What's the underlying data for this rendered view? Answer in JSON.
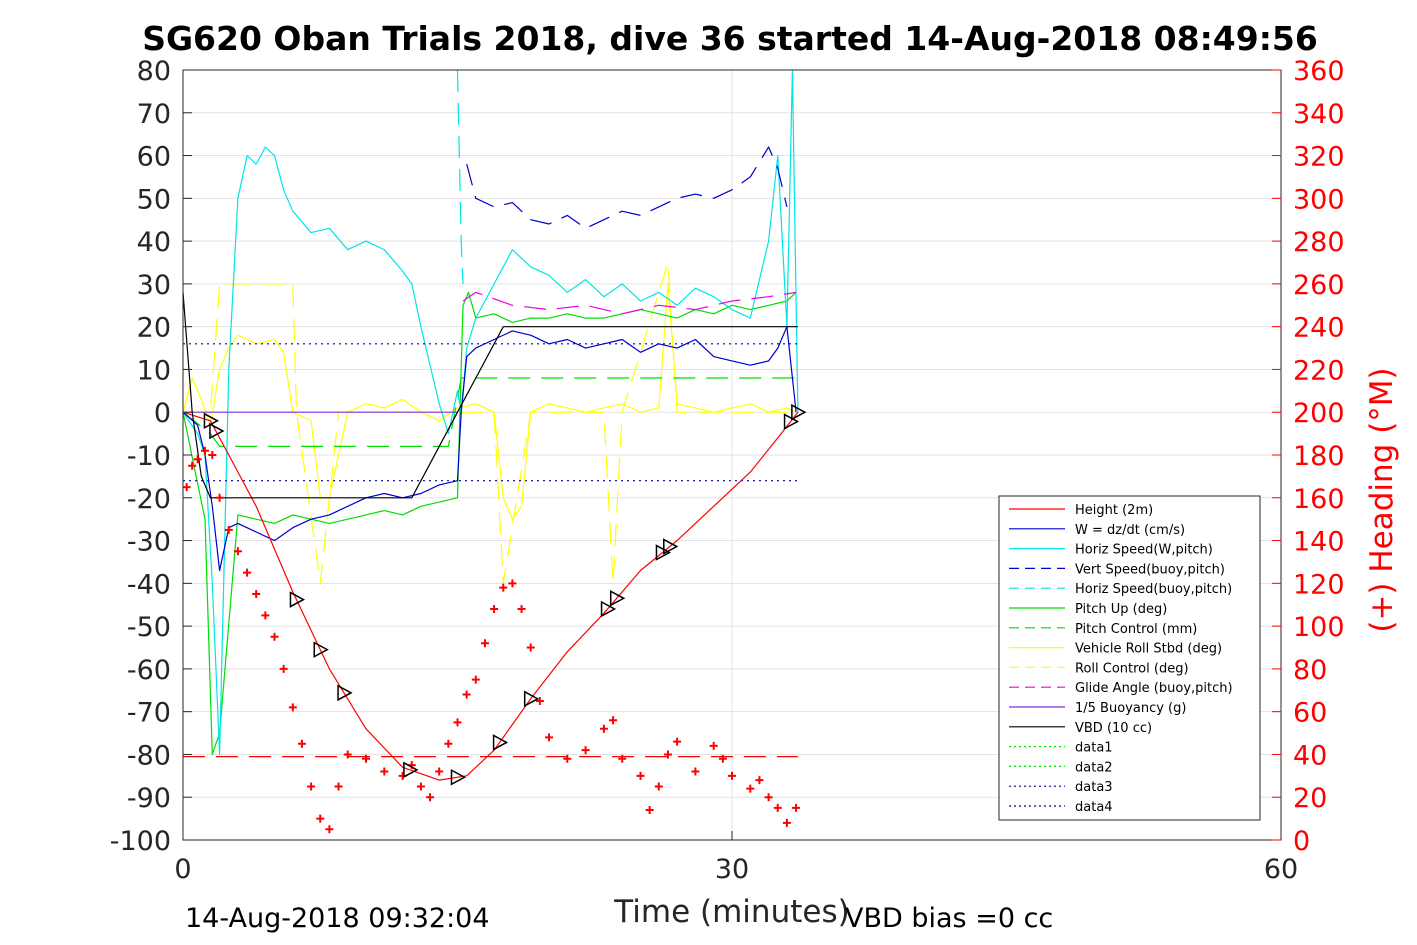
{
  "chart_data": {
    "type": "line",
    "title": "SG620 Oban Trials 2018, dive 36 started 14-Aug-2018 08:49:56",
    "xlabel": "Time (minutes)",
    "ylabel_right": "(+) Heading (°M)",
    "xlim": [
      0,
      60
    ],
    "ylim": [
      -100,
      80
    ],
    "y2lim": [
      0,
      360
    ],
    "xticks": [
      0,
      30,
      60
    ],
    "yticks": [
      80,
      70,
      60,
      50,
      40,
      30,
      20,
      10,
      0,
      -10,
      -20,
      -30,
      -40,
      -50,
      -60,
      -70,
      -80,
      -90,
      -100
    ],
    "y2ticks": [
      360,
      340,
      320,
      300,
      280,
      260,
      240,
      220,
      200,
      180,
      160,
      140,
      120,
      100,
      80,
      60,
      40,
      20,
      0
    ],
    "grid": true,
    "legend_position": "right-center",
    "footer_left": "14-Aug-2018 09:32:04",
    "footer_right": "VBD bias =0 cc",
    "colors": {
      "height": "#ff0000",
      "w": "#0000cd",
      "horiz_speed": "#00e5e5",
      "vert_speed_buoy": "#0000cd",
      "horiz_speed_buoy": "#00e5e5",
      "pitch_up": "#00dd00",
      "pitch_control": "#00dd00",
      "roll": "#ffff00",
      "roll_control": "#ffff00",
      "glide_angle": "#ee00ee",
      "buoyancy": "#8a2be2",
      "vbd": "#000000",
      "data1": "#00dd00",
      "data2": "#00dd00",
      "data3": "#0000aa",
      "data4": "#0000aa",
      "heading": "#ff0000"
    },
    "legend": [
      {
        "label": "Height (2m)",
        "color": "#ff0000",
        "dash": "solid"
      },
      {
        "label": "W = dz/dt (cm/s)",
        "color": "#0000cd",
        "dash": "solid"
      },
      {
        "label": "Horiz Speed(W,pitch)",
        "color": "#00e5e5",
        "dash": "solid"
      },
      {
        "label": "Vert Speed(buoy,pitch)",
        "color": "#0000cd",
        "dash": "dashed"
      },
      {
        "label": "Horiz Speed(buoy,pitch)",
        "color": "#00e5e5",
        "dash": "dashed"
      },
      {
        "label": "Pitch Up (deg)",
        "color": "#00dd00",
        "dash": "solid"
      },
      {
        "label": "Pitch Control (mm)",
        "color": "#00dd00",
        "dash": "dashed"
      },
      {
        "label": "Vehicle Roll Stbd (deg)",
        "color": "#ffff00",
        "dash": "solid"
      },
      {
        "label": "Roll Control (deg)",
        "color": "#ffff00",
        "dash": "dashed"
      },
      {
        "label": "Glide Angle (buoy,pitch)",
        "color": "#ee00ee",
        "dash": "dashed"
      },
      {
        "label": "1/5 Buoyancy (g)",
        "color": "#8a2be2",
        "dash": "solid"
      },
      {
        "label": "VBD (10 cc)",
        "color": "#000000",
        "dash": "solid"
      },
      {
        "label": "data1",
        "color": "#00dd00",
        "dash": "dotted"
      },
      {
        "label": "data2",
        "color": "#00dd00",
        "dash": "dotted"
      },
      {
        "label": "data3",
        "color": "#0000aa",
        "dash": "dotted"
      },
      {
        "label": "data4",
        "color": "#0000aa",
        "dash": "dotted"
      }
    ],
    "series": [
      {
        "name": "Height (2m)",
        "style": "line",
        "x": [
          0,
          1.5,
          2.5,
          4,
          6,
          8,
          10,
          12,
          14,
          15.5,
          17,
          19,
          21,
          23,
          25,
          27,
          29,
          31,
          32.5,
          33.6
        ],
        "y": [
          0,
          -2,
          -10,
          -22,
          -42,
          -60,
          -74,
          -83,
          -86,
          -85,
          -79,
          -67,
          -56,
          -47,
          -37,
          -30,
          -22,
          -14,
          -6,
          0
        ]
      },
      {
        "name": "W = dz/dt (cm/s)",
        "style": "line",
        "x": [
          0,
          0.8,
          1.2,
          1.6,
          2,
          2.5,
          3,
          4,
          5,
          6,
          7,
          8,
          9,
          10,
          11,
          12,
          13,
          14,
          15,
          15.2,
          15.5,
          16,
          17,
          18,
          19,
          20,
          21,
          22,
          23,
          24,
          25,
          26,
          27,
          28,
          29,
          30,
          31,
          32,
          32.5,
          33,
          33.5
        ],
        "y": [
          0,
          -3,
          -10,
          -22,
          -37,
          -27,
          -26,
          -28,
          -30,
          -27,
          -25,
          -24,
          -22,
          -20,
          -19,
          -20,
          -19,
          -17,
          -16,
          0,
          13,
          15,
          17,
          19,
          18,
          16,
          17,
          15,
          16,
          17,
          14,
          16,
          15,
          17,
          13,
          12,
          11,
          12,
          15,
          20,
          0
        ]
      },
      {
        "name": "Horiz Speed(W,pitch)",
        "style": "line",
        "x": [
          0,
          0.8,
          1.2,
          1.6,
          2,
          2.5,
          3,
          3.5,
          4,
          4.5,
          5,
          5.5,
          6,
          7,
          8,
          9,
          10,
          11,
          12,
          12.5,
          13,
          14,
          14.5,
          15,
          15.2,
          15.5,
          16,
          17,
          18,
          19,
          20,
          21,
          22,
          23,
          24,
          25,
          26,
          27,
          28,
          29,
          30,
          31,
          32,
          32.5,
          33,
          33.3,
          33.6
        ],
        "y": [
          0,
          -5,
          -10,
          -40,
          -80,
          10,
          50,
          60,
          58,
          62,
          60,
          52,
          47,
          42,
          43,
          38,
          40,
          38,
          33,
          30,
          20,
          2,
          -5,
          5,
          0,
          15,
          22,
          30,
          38,
          34,
          32,
          28,
          31,
          27,
          30,
          26,
          28,
          25,
          29,
          27,
          24,
          22,
          40,
          60,
          20,
          80,
          0
        ]
      },
      {
        "name": "Vert Speed(buoy,pitch)",
        "style": "dashed",
        "x": [
          15.5,
          16,
          17,
          18,
          19,
          20,
          21,
          22,
          23,
          24,
          25,
          26,
          27,
          28,
          29,
          30,
          31,
          32,
          32.5,
          33
        ],
        "y": [
          58,
          50,
          48,
          49,
          45,
          44,
          46,
          43,
          45,
          47,
          46,
          48,
          50,
          51,
          50,
          52,
          55,
          62,
          57,
          48
        ]
      },
      {
        "name": "Horiz Speed(buoy,pitch)",
        "style": "dashed",
        "x": [
          15,
          15.2,
          15.3
        ],
        "y": [
          80,
          40,
          30
        ]
      },
      {
        "name": "Pitch Up (deg)",
        "style": "line",
        "x": [
          0,
          1.2,
          1.6,
          2,
          3,
          4,
          5,
          6,
          7,
          8,
          9,
          10,
          11,
          12,
          13,
          14,
          15,
          15.3,
          15.6,
          16,
          17,
          18,
          19,
          20,
          21,
          22,
          23,
          24,
          25,
          26,
          27,
          28,
          29,
          30,
          31,
          32,
          33,
          33.5
        ],
        "y": [
          0,
          -25,
          -80,
          -75,
          -24,
          -25,
          -26,
          -24,
          -25,
          -26,
          -25,
          -24,
          -23,
          -24,
          -22,
          -21,
          -20,
          25,
          28,
          22,
          23,
          21,
          22,
          22,
          23,
          22,
          22,
          23,
          24,
          23,
          22,
          24,
          23,
          25,
          24,
          25,
          26,
          28
        ]
      },
      {
        "name": "Pitch Control (mm)",
        "style": "dashed",
        "x": [
          0,
          1.5,
          2,
          14.5,
          15.2,
          33.6
        ],
        "y": [
          0,
          -5,
          -8,
          -8,
          8,
          8
        ]
      },
      {
        "name": "Vehicle Roll Stbd (deg)",
        "style": "line",
        "x": [
          0,
          0.5,
          1,
          1.5,
          2,
          2.5,
          3,
          4,
          5,
          5.5,
          6,
          6.5,
          7,
          7.5,
          8,
          9,
          10,
          11,
          12,
          13,
          14,
          15,
          16,
          17,
          17.5,
          18,
          18.5,
          19,
          20,
          21,
          22,
          23,
          24,
          25,
          26,
          26.5,
          27,
          28,
          29,
          30,
          31,
          32,
          33,
          33.5
        ],
        "y": [
          0,
          8,
          3,
          -3,
          10,
          15,
          18,
          16,
          17,
          14,
          0,
          -1,
          -2,
          -20,
          -20,
          0,
          2,
          1,
          3,
          0,
          -2,
          1,
          2,
          0,
          -20,
          -25,
          -22,
          0,
          2,
          1,
          0,
          1,
          2,
          0,
          1,
          30,
          2,
          1,
          0,
          1,
          2,
          0,
          1,
          0
        ]
      },
      {
        "name": "Roll Control (deg)",
        "style": "dashed",
        "x": [
          0,
          1.5,
          2,
          6,
          6.2,
          7.5,
          8.5,
          14.5,
          17,
          17.5,
          19,
          23,
          23.5,
          24,
          26.5,
          27,
          33.6
        ],
        "y": [
          0,
          0,
          30,
          30,
          0,
          -40,
          0,
          0,
          0,
          -40,
          0,
          0,
          -40,
          0,
          35,
          0,
          0
        ]
      },
      {
        "name": "Glide Angle (buoy,pitch)",
        "style": "dashed",
        "x": [
          15.3,
          16,
          18,
          20,
          22,
          24,
          26,
          28,
          30,
          32,
          33.5
        ],
        "y": [
          26,
          28,
          25,
          24,
          25,
          23,
          25,
          24,
          26,
          27,
          28
        ]
      },
      {
        "name": "1/5 Buoyancy (g)",
        "style": "line",
        "x": [
          0,
          15
        ],
        "y": [
          0,
          0
        ]
      },
      {
        "name": "VBD (10 cc)",
        "style": "line",
        "x": [
          0,
          0.5,
          1,
          1.5,
          12.5,
          15,
          17.5,
          33.6
        ],
        "y": [
          28,
          0,
          -15,
          -20,
          -20,
          0,
          20,
          20
        ]
      },
      {
        "name": "data3",
        "style": "dotted",
        "x": [
          0,
          33.6
        ],
        "y": [
          16,
          16
        ]
      },
      {
        "name": "data4",
        "style": "dotted",
        "x": [
          0,
          33.6
        ],
        "y": [
          -16,
          -16
        ]
      },
      {
        "name": "Height ref",
        "style": "dashed",
        "x": [
          0,
          33.6
        ],
        "y": [
          -80.5,
          -80.5
        ]
      }
    ],
    "heading": {
      "name": "(+) Heading (°M)",
      "style": "markers",
      "x": [
        0.2,
        0.5,
        0.8,
        1.2,
        1.6,
        2,
        2.5,
        3,
        3.5,
        4,
        4.5,
        5,
        5.5,
        6,
        6.5,
        7,
        7.5,
        8,
        8.5,
        9,
        10,
        11,
        12,
        12.5,
        13,
        13.5,
        14,
        14.5,
        15,
        15.5,
        16,
        16.5,
        17,
        17.5,
        18,
        18.5,
        19,
        19.5,
        20,
        21,
        22,
        23,
        23.5,
        24,
        25,
        25.5,
        26,
        26.5,
        27,
        28,
        29,
        29.5,
        30,
        31,
        31.5,
        32,
        32.5,
        33,
        33.5
      ],
      "y": [
        165,
        175,
        178,
        182,
        180,
        160,
        145,
        135,
        125,
        115,
        105,
        95,
        80,
        62,
        45,
        25,
        10,
        5,
        25,
        40,
        38,
        32,
        30,
        35,
        25,
        20,
        32,
        45,
        55,
        68,
        75,
        92,
        108,
        118,
        120,
        108,
        90,
        65,
        48,
        38,
        42,
        52,
        56,
        38,
        30,
        14,
        25,
        40,
        46,
        32,
        44,
        38,
        30,
        24,
        28,
        20,
        15,
        8,
        15
      ]
    }
  }
}
